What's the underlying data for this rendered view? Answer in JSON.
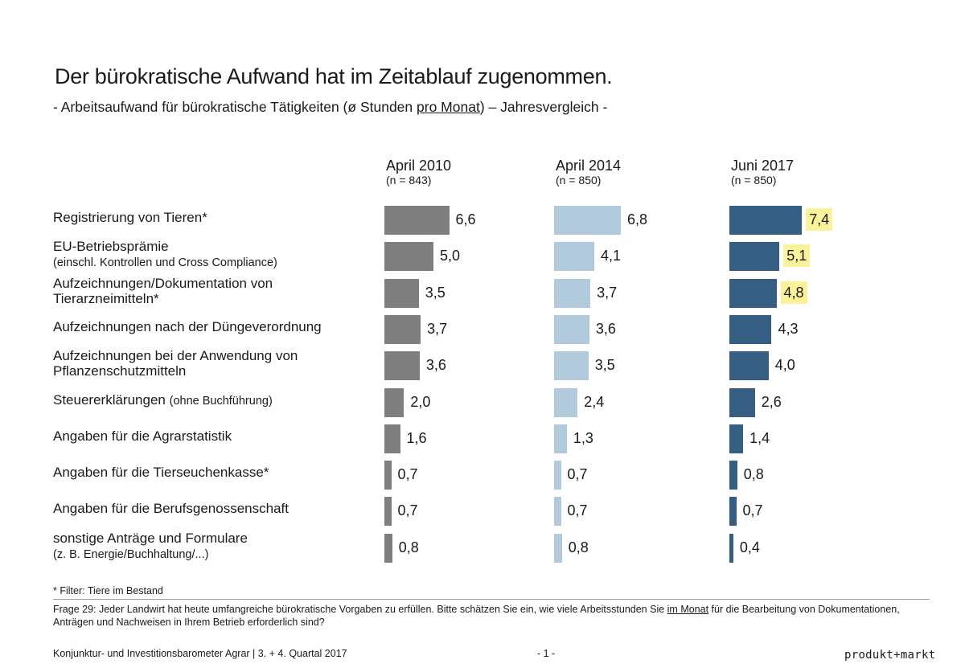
{
  "header": {
    "title": "Der bürokratische Aufwand hat im Zeitablauf zugenommen.",
    "subtitle_pre": "- Arbeitsaufwand für bürokratische Tätigkeiten (ø Stunden ",
    "subtitle_underline": "pro Monat",
    "subtitle_post": ") – Jahresvergleich -"
  },
  "chart_data": {
    "type": "bar",
    "orientation": "horizontal",
    "title": "Der bürokratische Aufwand hat im Zeitablauf zugenommen.",
    "categories": [
      "Registrierung von Tieren*",
      "EU-Betriebsprämie",
      "Aufzeichnungen/Dokumentation von Tierarzneimitteln*",
      "Aufzeichnungen nach der Düngeverordnung",
      "Aufzeichnungen bei der Anwendung von Pflanzenschutzmitteln",
      "Steuererklärungen",
      "Angaben für die Agrarstatistik",
      "Angaben für die Tierseuchenkasse*",
      "Angaben für die Berufsgenossenschaft",
      "sonstige Anträge und Formulare"
    ],
    "series": [
      {
        "name": "April 2010",
        "n": "(n = 843)",
        "color": "#7f7f7f",
        "values": [
          6.6,
          5.0,
          3.5,
          3.7,
          3.6,
          2.0,
          1.6,
          0.7,
          0.7,
          0.8
        ],
        "labels": [
          "6,6",
          "5,0",
          "3,5",
          "3,7",
          "3,6",
          "2,0",
          "1,6",
          "0,7",
          "0,7",
          "0,8"
        ]
      },
      {
        "name": "April 2014",
        "n": "(n = 850)",
        "color": "#b1cbdd",
        "values": [
          6.8,
          4.1,
          3.7,
          3.6,
          3.5,
          2.4,
          1.3,
          0.7,
          0.7,
          0.8
        ],
        "labels": [
          "6,8",
          "4,1",
          "3,7",
          "3,6",
          "3,5",
          "2,4",
          "1,3",
          "0,7",
          "0,7",
          "0,8"
        ]
      },
      {
        "name": "Juni 2017",
        "n": "(n = 850)",
        "color": "#365e82",
        "values": [
          7.4,
          5.1,
          4.8,
          4.3,
          4.0,
          2.6,
          1.4,
          0.8,
          0.7,
          0.4
        ],
        "labels": [
          "7,4",
          "5,1",
          "4,8",
          "4,3",
          "4,0",
          "2,6",
          "1,4",
          "0,8",
          "0,7",
          "0,4"
        ],
        "highlighted": [
          true,
          true,
          true,
          false,
          false,
          false,
          false,
          false,
          false,
          false
        ]
      }
    ],
    "row_labels": [
      {
        "main": "Registrierung von Tieren*",
        "sub": "",
        "line2": ""
      },
      {
        "main": "EU-Betriebsprämie",
        "sub": "",
        "line2": "(einschl. Kontrollen und Cross Compliance)"
      },
      {
        "main": "Aufzeichnungen/Dokumentation von",
        "sub": "",
        "line2": "Tierarzneimitteln*"
      },
      {
        "main": "Aufzeichnungen nach der Düngeverordnung",
        "sub": "",
        "line2": ""
      },
      {
        "main": "Aufzeichnungen bei der Anwendung von",
        "sub": "",
        "line2": "Pflanzenschutzmitteln"
      },
      {
        "main": "Steuererklärungen",
        "sub": "(ohne Buchführung)",
        "line2": ""
      },
      {
        "main": "Angaben für die Agrarstatistik",
        "sub": "",
        "line2": ""
      },
      {
        "main": "Angaben für die Tierseuchenkasse*",
        "sub": "",
        "line2": ""
      },
      {
        "main": "Angaben für die Berufsgenossenschaft",
        "sub": "",
        "line2": ""
      },
      {
        "main": "sonstige Anträge und Formulare",
        "sub": "",
        "line2": "(z. B. Energie/Buchhaltung/...)"
      }
    ],
    "highlight_color": "#fbf29a",
    "xlabel": "",
    "ylabel": ""
  },
  "footnote": "* Filter: Tiere im Bestand",
  "question": {
    "pre": "Frage 29: Jeder Landwirt hat heute umfangreiche bürokratische Vorgaben zu erfüllen. Bitte schätzen Sie ein, wie viele Arbeitsstunden Sie ",
    "underline": "im Monat",
    "post": " für die Bearbeitung von Dokumentationen, Anträgen und Nachweisen in Ihrem Betrieb erforderlich sind?"
  },
  "footer": {
    "left": "Konjunktur- und Investitionsbarometer Agrar | 3. + 4. Quartal 2017",
    "page": "- 1 -",
    "brand": "produkt+markt"
  }
}
